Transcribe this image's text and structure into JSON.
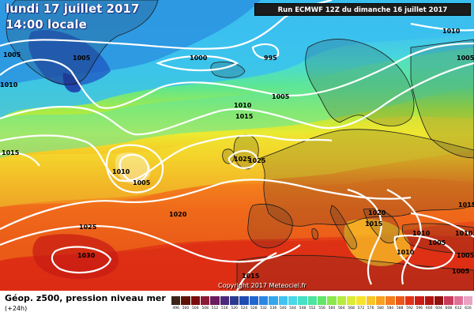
{
  "header": {
    "date": "lundi 17 juillet 2017",
    "time": "14:00 locale",
    "run": "Run ECMWF 12Z du dimanche 16 juillet 2017"
  },
  "copyright": "Copyright 2017 Meteociel.fr",
  "legend": {
    "title": "Géop. z500, pression niveau mer",
    "subtitle": "(+24h)",
    "scale": [
      {
        "label": "496",
        "color": "#3a2418"
      },
      {
        "label": "500",
        "color": "#5e1206"
      },
      {
        "label": "504",
        "color": "#7a0c0c"
      },
      {
        "label": "508",
        "color": "#8c1a36"
      },
      {
        "label": "512",
        "color": "#6a1c5e"
      },
      {
        "label": "516",
        "color": "#4a2a7a"
      },
      {
        "label": "520",
        "color": "#2a3a8e"
      },
      {
        "label": "524",
        "color": "#1e4cb0"
      },
      {
        "label": "528",
        "color": "#2066d0"
      },
      {
        "label": "532",
        "color": "#2a86e4"
      },
      {
        "label": "536",
        "color": "#34a6ee"
      },
      {
        "label": "540",
        "color": "#40c2f2"
      },
      {
        "label": "544",
        "color": "#48d8e8"
      },
      {
        "label": "548",
        "color": "#46e0c6"
      },
      {
        "label": "552",
        "color": "#4ae49e"
      },
      {
        "label": "556",
        "color": "#62e66a"
      },
      {
        "label": "560",
        "color": "#8ae84c"
      },
      {
        "label": "564",
        "color": "#b4ec40"
      },
      {
        "label": "568",
        "color": "#dcec34"
      },
      {
        "label": "572",
        "color": "#f6e42c"
      },
      {
        "label": "576",
        "color": "#f8c426"
      },
      {
        "label": "580",
        "color": "#f8a020"
      },
      {
        "label": "584",
        "color": "#f47c1c"
      },
      {
        "label": "588",
        "color": "#ec5618"
      },
      {
        "label": "592",
        "color": "#e23216"
      },
      {
        "label": "596",
        "color": "#cc1c14"
      },
      {
        "label": "600",
        "color": "#b01210"
      },
      {
        "label": "604",
        "color": "#92100e"
      },
      {
        "label": "608",
        "color": "#c83c5a"
      },
      {
        "label": "612",
        "color": "#e07098"
      },
      {
        "label": "616",
        "color": "#eaa2c4"
      }
    ]
  },
  "isobars": {
    "labels": [
      "1005",
      "1005",
      "1000",
      "995",
      "1005",
      "1010",
      "1010",
      "1015",
      "1005",
      "1010",
      "1025",
      "1025",
      "1015",
      "1010",
      "1005",
      "1020",
      "1025",
      "1030",
      "1020",
      "1015",
      "1010",
      "1005",
      "1010",
      "1005",
      "1015",
      "1010",
      "1005",
      "1015"
    ]
  }
}
